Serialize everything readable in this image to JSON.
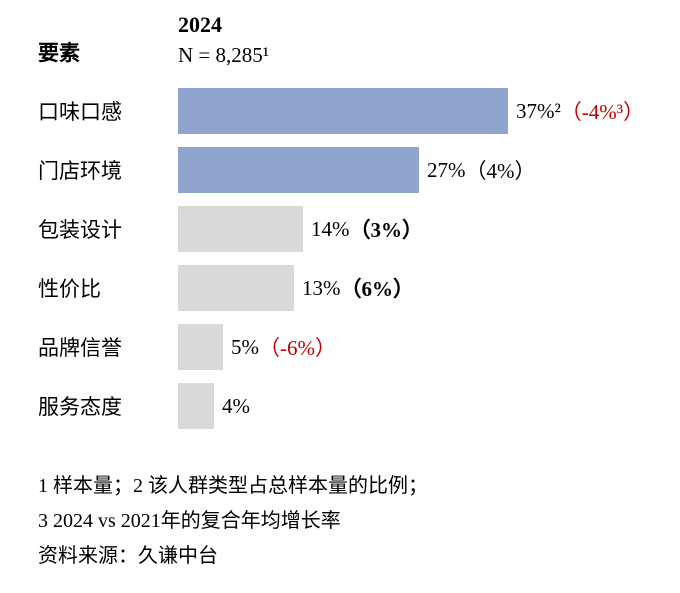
{
  "chart_data": {
    "type": "bar",
    "orientation": "horizontal",
    "title": "2024",
    "subtitle_sample_size": "N = 8,285¹",
    "category_axis_label": "要素",
    "categories": [
      "口味口感",
      "门店环境",
      "包装设计",
      "性价比",
      "品牌信誉",
      "服务态度"
    ],
    "values": [
      37,
      27,
      14,
      13,
      5,
      4
    ],
    "value_unit": "%",
    "max_value_for_scale": 37,
    "legend_position": "none",
    "grid": false,
    "colors": {
      "primary_bar": "#8FA5CD",
      "secondary_bar": "#D9D9D9",
      "negative_growth_text": "#C00000",
      "text": "#000000"
    },
    "rows": [
      {
        "label": "口味口感",
        "value": 37,
        "value_text": "37%²",
        "growth_text": "（-4%³）",
        "growth_negative": true,
        "growth_bold": false,
        "color": "#8FA5CD"
      },
      {
        "label": "门店环境",
        "value": 27,
        "value_text": "27%",
        "growth_text": "（4%）",
        "growth_negative": false,
        "growth_bold": false,
        "color": "#8FA5CD"
      },
      {
        "label": "包装设计",
        "value": 14,
        "value_text": "14%",
        "growth_text": "（3%）",
        "growth_negative": false,
        "growth_bold": true,
        "color": "#D9D9D9"
      },
      {
        "label": "性价比",
        "value": 13,
        "value_text": "13%",
        "growth_text": "（6%）",
        "growth_negative": false,
        "growth_bold": true,
        "color": "#D9D9D9"
      },
      {
        "label": "品牌信誉",
        "value": 5,
        "value_text": "5%",
        "growth_text": "（-6%）",
        "growth_negative": true,
        "growth_bold": false,
        "color": "#D9D9D9"
      },
      {
        "label": "服务态度",
        "value": 4,
        "value_text": "4%",
        "growth_text": "",
        "growth_negative": false,
        "growth_bold": false,
        "color": "#D9D9D9"
      }
    ]
  },
  "footnotes": {
    "line1": "1 样本量；2 该人群类型占总样本量的比例；",
    "line2": "3 2024 vs 2021年的复合年均增长率",
    "source": "资料来源：久谦中台"
  }
}
